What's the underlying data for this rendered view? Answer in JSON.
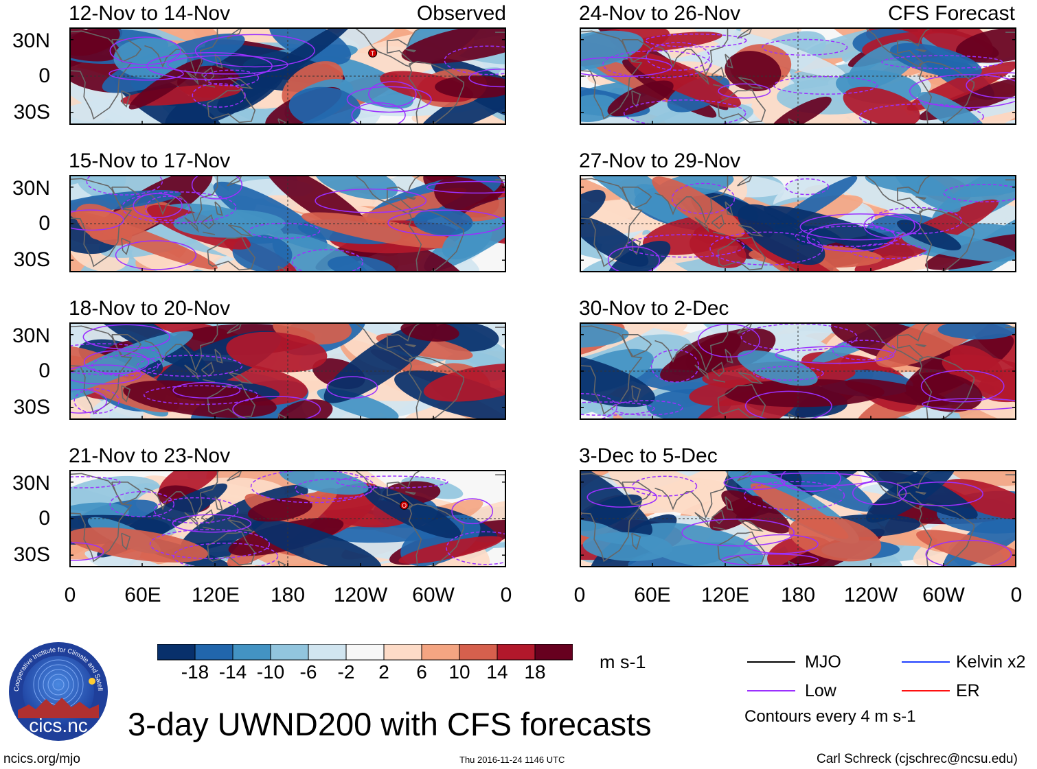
{
  "panels": [
    {
      "title": "12-Nov to 14-Nov",
      "label": "Observed",
      "storms": [
        {
          "symbol": "T",
          "lon": -110,
          "lat": 19
        }
      ]
    },
    {
      "title": "15-Nov to 17-Nov",
      "label": "",
      "storms": []
    },
    {
      "title": "18-Nov to 20-Nov",
      "label": "",
      "storms": []
    },
    {
      "title": "21-Nov to 23-Nov",
      "label": "",
      "storms": [
        {
          "symbol": "O",
          "lon": -84,
          "lat": 11
        }
      ]
    },
    {
      "title": "24-Nov to 26-Nov",
      "label": "CFS Forecast",
      "storms": []
    },
    {
      "title": "27-Nov to 29-Nov",
      "label": "",
      "storms": []
    },
    {
      "title": "30-Nov to 2-Dec",
      "label": "",
      "storms": []
    },
    {
      "title": "3-Dec to 5-Dec",
      "label": "",
      "storms": []
    }
  ],
  "axes": {
    "lat_labels": [
      "30N",
      "0",
      "30S"
    ],
    "lat_values": [
      30,
      0,
      -30
    ],
    "lon_labels": [
      "0",
      "60E",
      "120E",
      "180",
      "120W",
      "60W",
      "0"
    ],
    "lon_values": [
      0,
      60,
      120,
      180,
      240,
      300,
      360
    ],
    "lat_range": [
      -40,
      40
    ],
    "lon_range": [
      0,
      360
    ]
  },
  "colorbar": {
    "colors": [
      "#08306b",
      "#2166ac",
      "#4393c3",
      "#92c5de",
      "#d1e5f0",
      "#f7f7f7",
      "#fddbc7",
      "#f4a582",
      "#d6604d",
      "#b2182b",
      "#67001f"
    ],
    "labels": [
      "-18",
      "-14",
      "-10",
      "-6",
      "-2",
      "2",
      "6",
      "10",
      "14",
      "18"
    ],
    "units": "m s-1"
  },
  "legend": {
    "items": [
      {
        "name": "MJO",
        "color": "#000000"
      },
      {
        "name": "Kelvin x2",
        "color": "#1f3fff"
      },
      {
        "name": "Low",
        "color": "#9b30ff"
      },
      {
        "name": "ER",
        "color": "#ff1010"
      }
    ],
    "note": "Contours every 4 m s-1"
  },
  "title": "3-day UWND200 with CFS forecasts",
  "logo_text": "cics.nc",
  "logo_ring_text": "Cooperative Institute for Climate and Satellites",
  "footer": {
    "left": "ncics.org/mjo",
    "center": "Thu 2016-11-24 1146 UTC",
    "right": "Carl Schreck (cjschrec@ncsu.edu)"
  }
}
